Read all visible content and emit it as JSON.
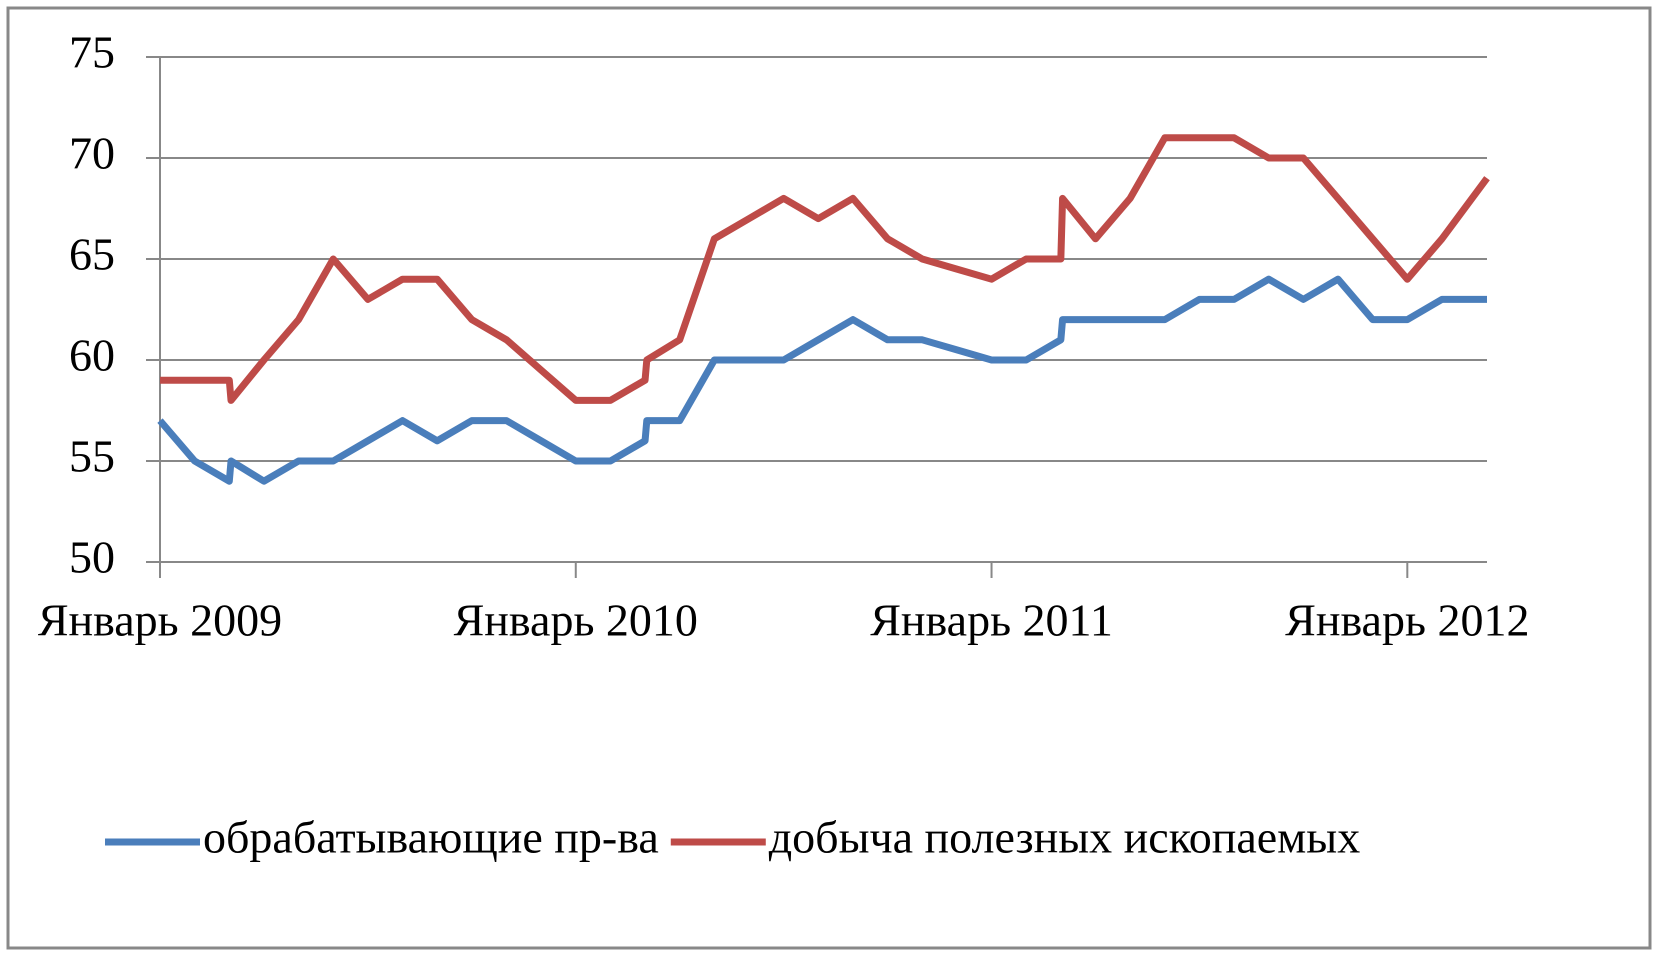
{
  "chart_data": {
    "type": "line",
    "series": [
      {
        "name": "обрабатывающие пр-ва",
        "color": "#4a7ebb",
        "x": [
          0,
          1,
          2,
          2.05,
          3,
          4,
          5,
          6,
          7,
          8,
          9,
          10,
          11,
          12,
          13,
          14,
          14.05,
          15,
          16,
          17,
          18,
          19,
          20,
          21,
          22,
          23,
          24,
          25,
          26,
          26.05,
          27,
          28,
          29,
          30,
          31,
          32,
          33,
          34,
          35,
          36,
          37,
          38.3
        ],
        "values": [
          57,
          55,
          54,
          55,
          54,
          55,
          55,
          56,
          57,
          56,
          57,
          57,
          56,
          55,
          55,
          56,
          57,
          57,
          60,
          60,
          60,
          61,
          62,
          61,
          61,
          60.5,
          60,
          60,
          61,
          62,
          62,
          62,
          62,
          63,
          63,
          64,
          63,
          64,
          62,
          62,
          63,
          63
        ]
      },
      {
        "name": "добыча полезных ископаемых",
        "color": "#be4b48",
        "x": [
          0,
          2,
          2.05,
          3,
          4,
          5,
          6,
          7,
          8,
          9,
          10,
          11,
          12,
          13,
          14,
          14.05,
          15,
          16,
          17,
          18,
          19,
          20,
          21,
          22,
          23,
          24,
          25,
          26,
          26.05,
          27,
          28,
          29,
          30,
          31,
          32,
          33,
          34,
          35,
          36,
          37,
          38.3
        ],
        "values": [
          59,
          59,
          58,
          60,
          62,
          65,
          63,
          64,
          64,
          62,
          61,
          59.5,
          58,
          58,
          59,
          60,
          61,
          66,
          67,
          68,
          67,
          68,
          66,
          65,
          64.5,
          64,
          65,
          65,
          68,
          66,
          68,
          71,
          71,
          71,
          70,
          70,
          68,
          66,
          64,
          66,
          69
        ]
      }
    ],
    "xlim": [
      0,
      38.3
    ],
    "xticks": [
      {
        "value": 0,
        "label": "Январь 2009"
      },
      {
        "value": 12,
        "label": "Январь 2010"
      },
      {
        "value": 24,
        "label": "Январь 2011"
      },
      {
        "value": 36,
        "label": "Январь 2012"
      }
    ],
    "ylim": [
      50,
      75
    ],
    "yticks": [
      50,
      55,
      60,
      65,
      70,
      75
    ],
    "grid": true,
    "legend": "bottom"
  }
}
